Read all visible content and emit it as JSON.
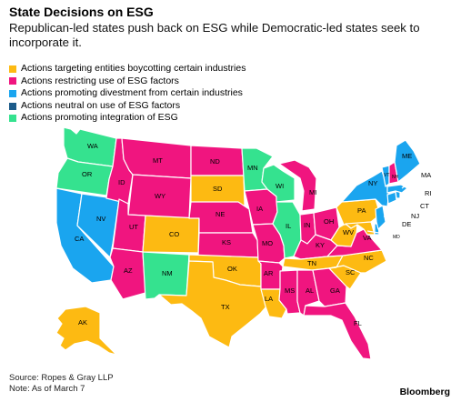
{
  "title": "State Decisions on ESG",
  "subtitle": "Republican-led states push back on ESG while Democratic-led states seek to incorporate it.",
  "colors": {
    "boycott": "#FDBA12",
    "restrict": "#F0157F",
    "divest": "#1AA5EF",
    "neutral": "#1C5B8A",
    "integrate": "#35E28F"
  },
  "legend": [
    {
      "key": "boycott",
      "label": "Actions targeting entities boycotting certain industries"
    },
    {
      "key": "restrict",
      "label": "Actions restricting use of ESG factors"
    },
    {
      "key": "divest",
      "label": "Actions promoting divestment from certain industries"
    },
    {
      "key": "neutral",
      "label": "Actions neutral on use of ESG factors"
    },
    {
      "key": "integrate",
      "label": "Actions promoting integration of ESG"
    }
  ],
  "states": {
    "WA": "WA",
    "OR": "OR",
    "CA": "CA",
    "NV": "NV",
    "ID": "ID",
    "MT": "MT",
    "WY": "WY",
    "UT": "UT",
    "AZ": "AZ",
    "CO": "CO",
    "NM": "NM",
    "ND": "ND",
    "SD": "SD",
    "NE": "NE",
    "KS": "KS",
    "OK": "OK",
    "TX": "TX",
    "MN": "MN",
    "IA": "IA",
    "MO": "MO",
    "AR": "AR",
    "LA": "LA",
    "WI": "WI",
    "IL": "IL",
    "MI": "MI",
    "IN": "IN",
    "OH": "OH",
    "KY": "KY",
    "TN": "TN",
    "MS": "MS",
    "AL": "AL",
    "GA": "GA",
    "FL": "FL",
    "SC": "SC",
    "NC": "NC",
    "VA": "VA",
    "WV": "WV",
    "PA": "PA",
    "NY": "NY",
    "VT": "VT",
    "NH": "NH",
    "ME": "ME",
    "MA": "MA",
    "RI": "RI",
    "CT": "CT",
    "NJ": "NJ",
    "DE": "DE",
    "MD": "MD",
    "AK": "AK"
  },
  "footer": {
    "source": "Source: Ropes & Gray LLP",
    "note": "Note: As of March 7",
    "brand": "Bloomberg"
  }
}
